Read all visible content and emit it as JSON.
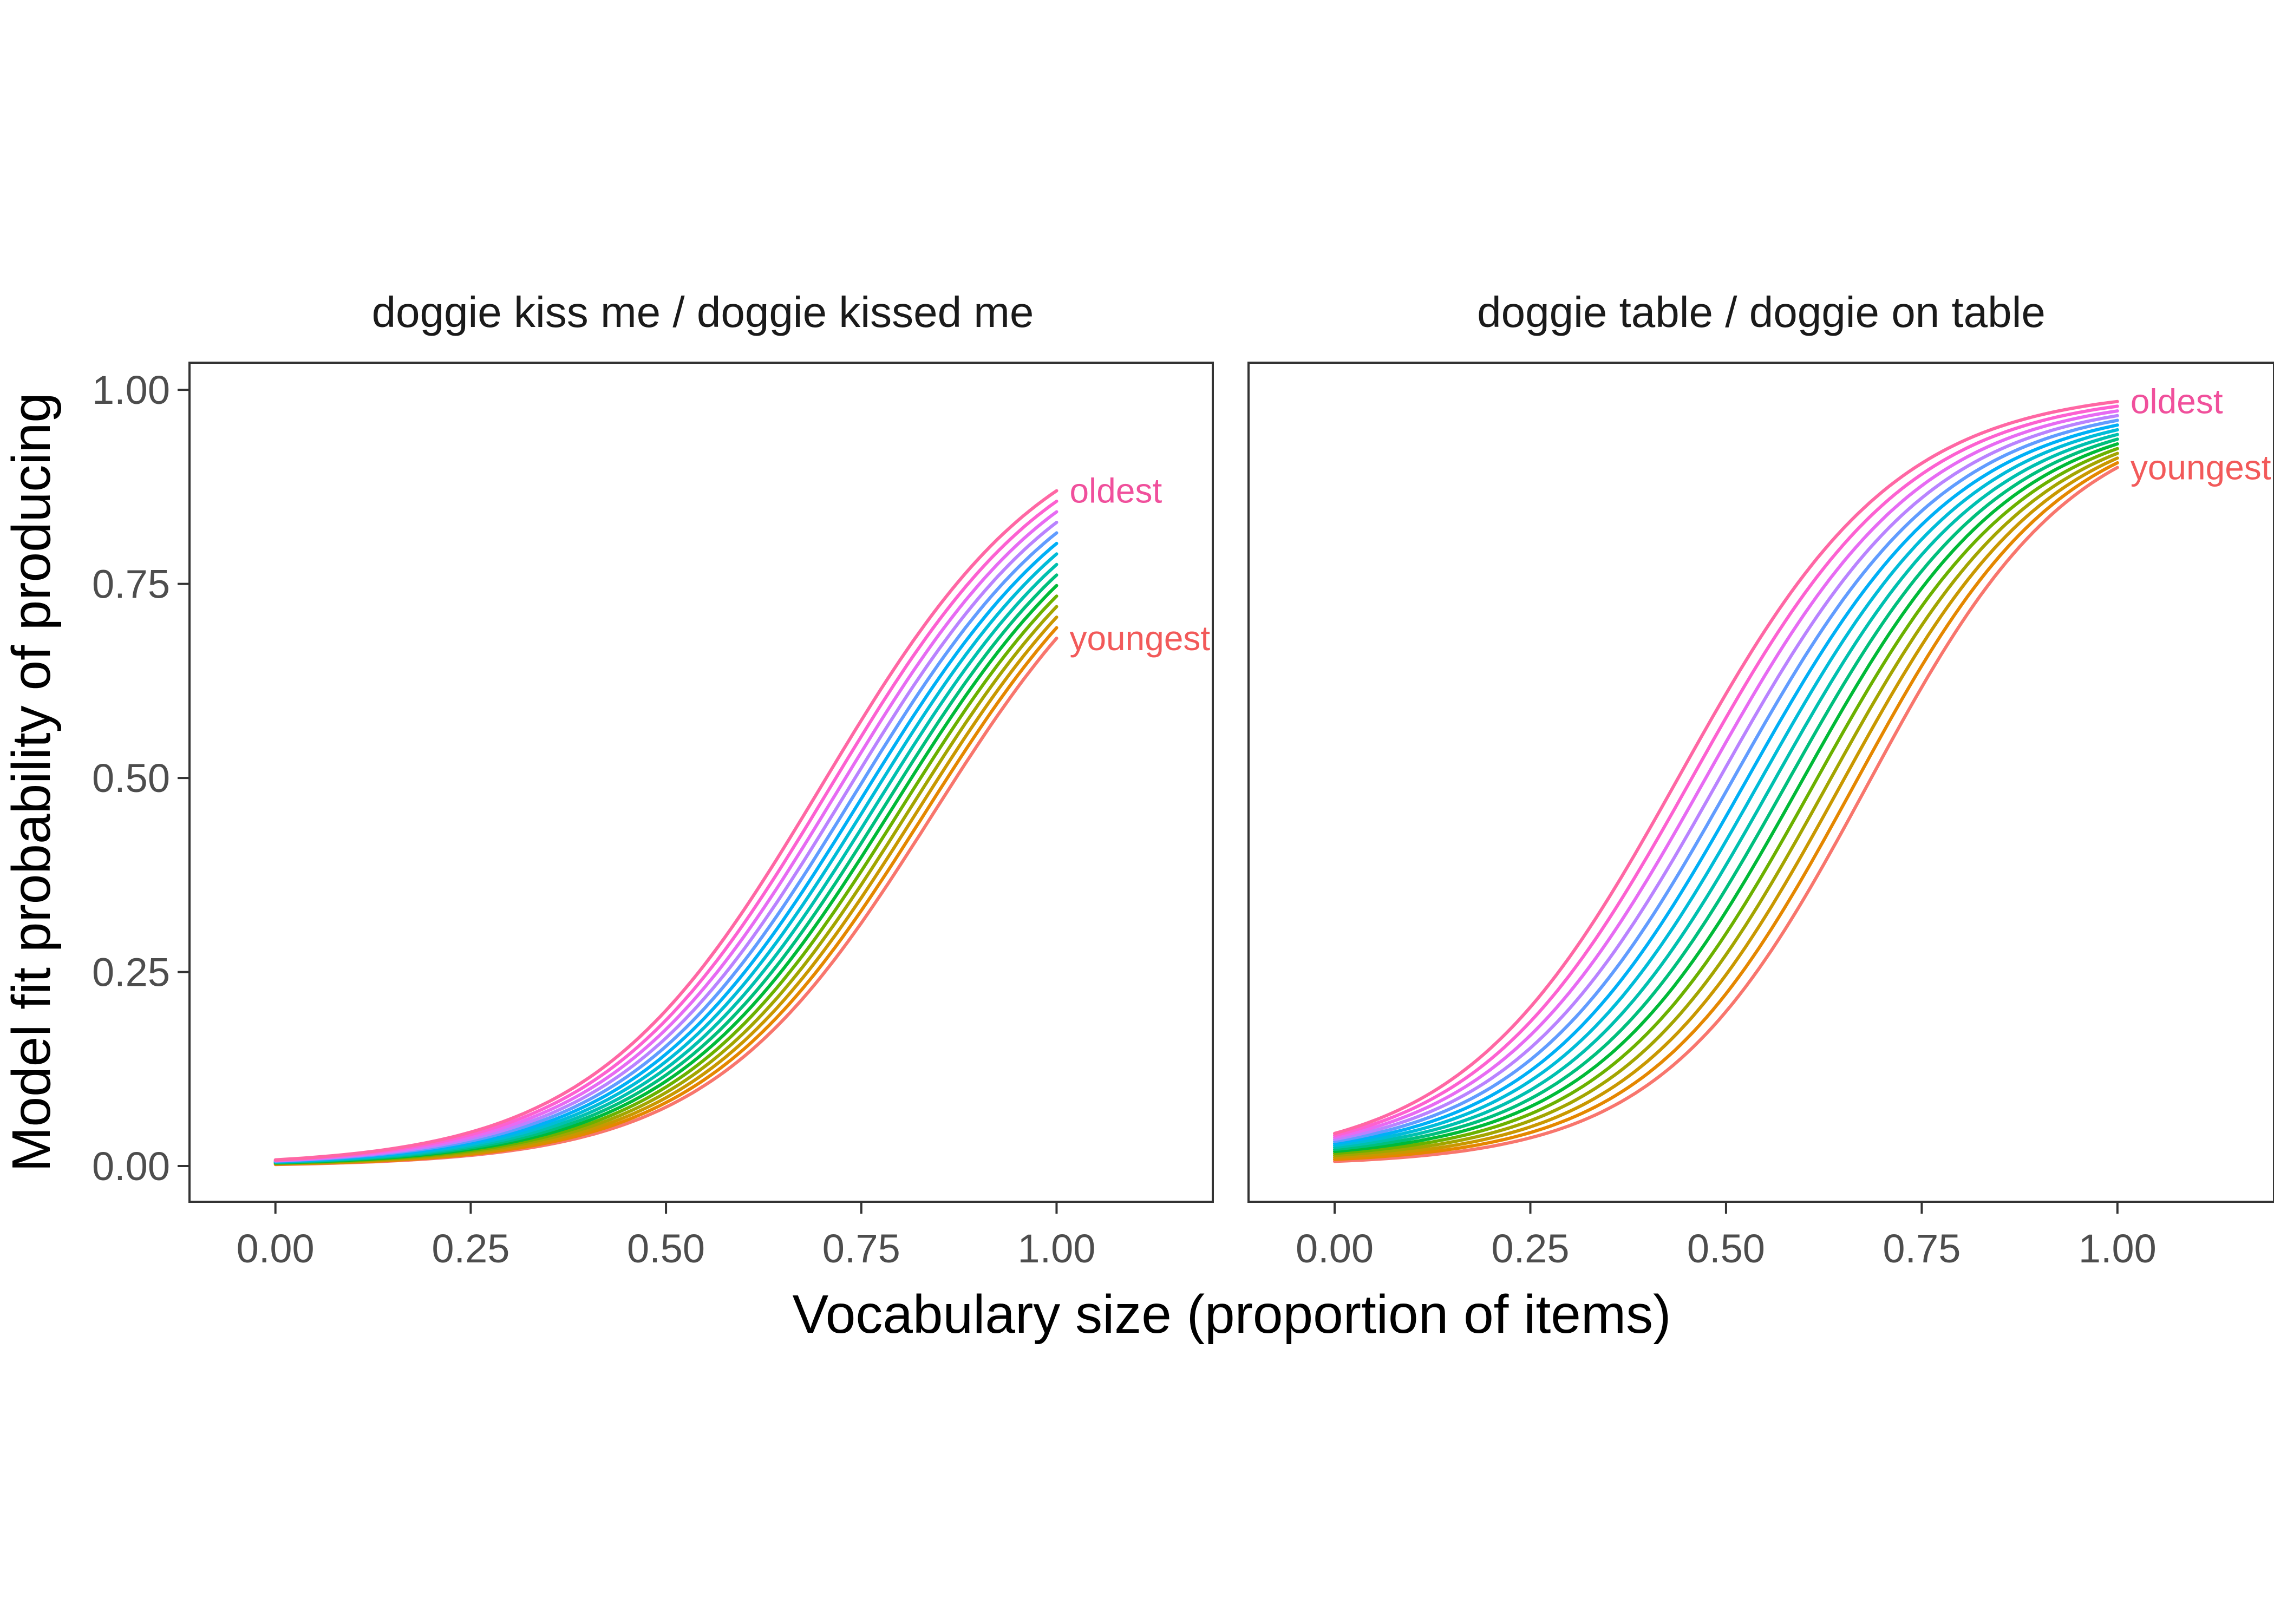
{
  "chart_data": {
    "type": "line",
    "xlabel": "Vocabulary size (proportion of items)",
    "ylabel": "Model fit probability of producing",
    "xlim": [
      -0.11,
      1.2
    ],
    "ylim": [
      -0.046,
      1.035
    ],
    "x_ticks": [
      "0.00",
      "0.25",
      "0.50",
      "0.75",
      "1.00"
    ],
    "y_ticks": [
      "0.00",
      "0.25",
      "0.50",
      "0.75",
      "1.00"
    ],
    "x_tick_values": [
      0,
      0.25,
      0.5,
      0.75,
      1
    ],
    "y_tick_values": [
      0,
      0.25,
      0.5,
      0.75,
      1
    ],
    "grid": false,
    "legend": "none",
    "series_count": 15,
    "series_colors": [
      "#F8766D",
      "#E58700",
      "#C99800",
      "#A3A500",
      "#6BB100",
      "#00BA38",
      "#00BF7D",
      "#00C0AF",
      "#00BCD8",
      "#00B0F6",
      "#619CFF",
      "#B983FF",
      "#E76BF3",
      "#FD61D1",
      "#FF67A4"
    ],
    "oldest_color": "#F0509C",
    "youngest_color": "#F25A5A",
    "facets": [
      {
        "title": "doggie kiss me / doggie kissed me",
        "youngest_label": "youngest",
        "oldest_label": "oldest",
        "start_values": {
          "youngest": 0.002,
          "oldest": 0.008
        },
        "end_values": {
          "youngest": 0.68,
          "oldest": 0.87
        },
        "midpoint_x": {
          "youngest": 0.84,
          "oldest": 0.7
        },
        "slope": {
          "youngest": 7.0,
          "oldest": 6.8
        }
      },
      {
        "title": "doggie table / doggie on table",
        "youngest_label": "youngest",
        "oldest_label": "oldest",
        "start_values": {
          "youngest": 0.006,
          "oldest": 0.042
        },
        "end_values": {
          "youngest": 0.9,
          "oldest": 0.985
        },
        "midpoint_x": {
          "youngest": 0.68,
          "oldest": 0.44
        },
        "slope": {
          "youngest": 7.6,
          "oldest": 7.2
        }
      }
    ]
  }
}
